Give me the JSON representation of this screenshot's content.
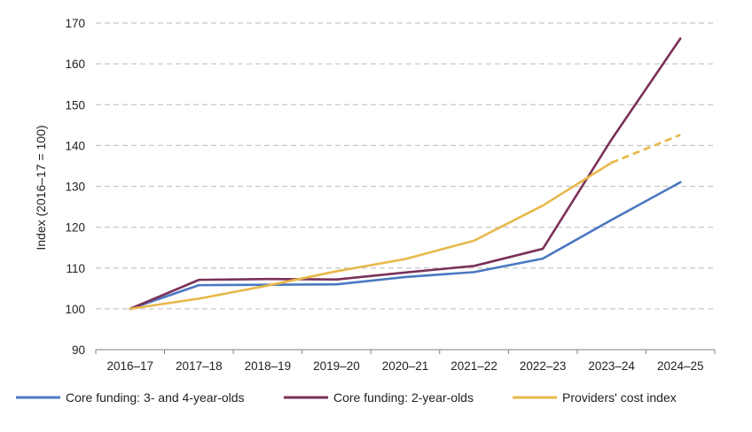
{
  "chart_data": {
    "type": "line",
    "title": "",
    "xlabel": "",
    "ylabel": "Index (2016–17 = 100)",
    "ylim": [
      90,
      170
    ],
    "yticks": [
      90,
      100,
      110,
      120,
      130,
      140,
      150,
      160,
      170
    ],
    "grid": "horizontal dashed",
    "legend_position": "bottom",
    "categories": [
      "2016–17",
      "2017–18",
      "2018–19",
      "2019–20",
      "2020–21",
      "2021–22",
      "2022–23",
      "2023–24",
      "2024–25"
    ],
    "series": [
      {
        "name": "Core funding: 3- and 4-year-olds",
        "color": "#4a78c0",
        "values": [
          100,
          105.8,
          105.9,
          106.0,
          107.8,
          109.0,
          112.3,
          121.8,
          131.0
        ],
        "dashed_from_index": null
      },
      {
        "name": "Core funding: 2-year-olds",
        "color": "#7b3158",
        "values": [
          100,
          107.1,
          107.3,
          107.2,
          108.9,
          110.5,
          114.7,
          141.5,
          166.2
        ],
        "dashed_from_index": null
      },
      {
        "name": "Providers' cost index",
        "color": "#e8b84a",
        "values": [
          100,
          102.5,
          105.7,
          109.2,
          112.2,
          116.7,
          125.3,
          135.8,
          142.6
        ],
        "dashed_from_index": 7
      }
    ]
  }
}
